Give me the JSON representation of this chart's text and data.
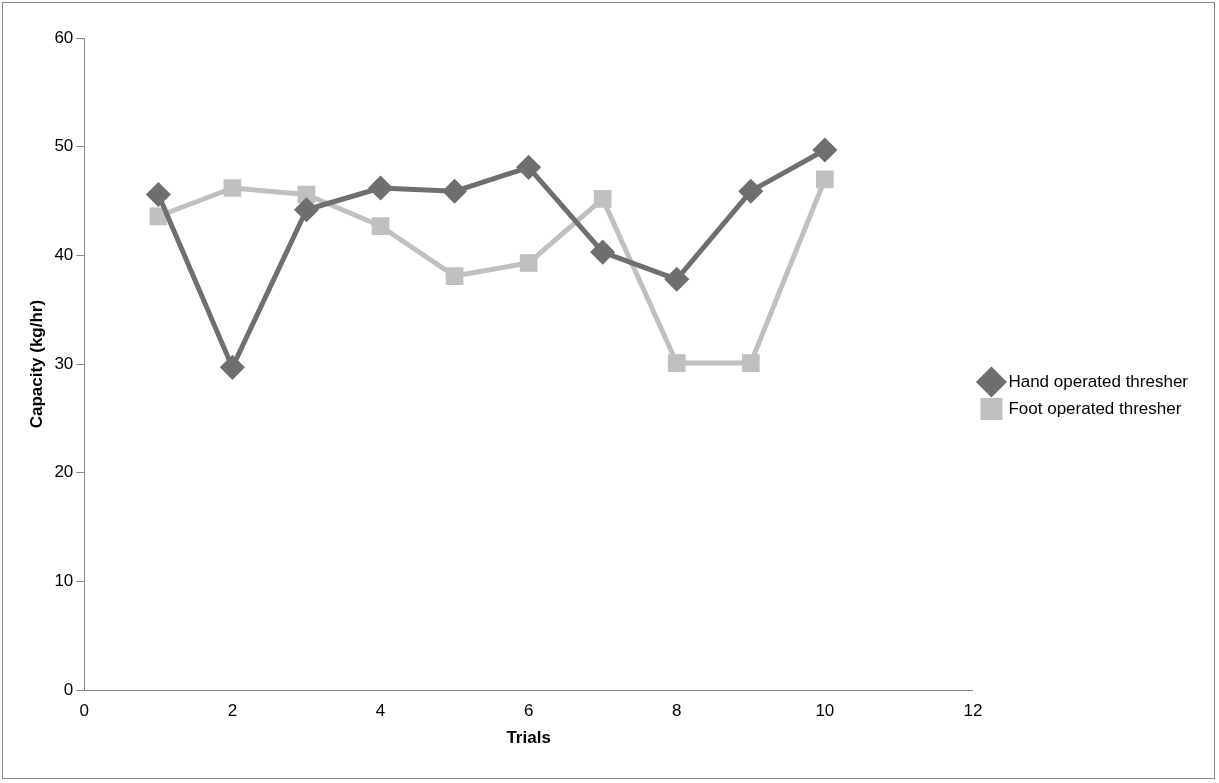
{
  "chart_data": {
    "type": "line",
    "xlabel": "Trials",
    "ylabel": "Capacity (kg/hr)",
    "x": [
      1,
      2,
      3,
      4,
      5,
      6,
      7,
      8,
      9,
      10
    ],
    "series": [
      {
        "name": "Hand operated thresher",
        "color": "#6f6f6f",
        "marker": "diamond",
        "values": [
          45.6,
          29.7,
          44.2,
          46.2,
          45.9,
          48.1,
          40.3,
          37.8,
          45.9,
          49.7
        ]
      },
      {
        "name": "Foot operated thresher",
        "color": "#c0c0c0",
        "marker": "square",
        "values": [
          43.6,
          46.2,
          45.6,
          42.7,
          38.1,
          39.3,
          45.2,
          30.1,
          30.1,
          47.0
        ]
      }
    ],
    "xlim": [
      0,
      12
    ],
    "xticks": [
      0,
      2,
      4,
      6,
      8,
      10,
      12
    ],
    "ylim": [
      0,
      60
    ],
    "yticks": [
      0,
      10,
      20,
      30,
      40,
      50,
      60
    ],
    "grid": false,
    "legend": "right",
    "line_style": "solid"
  }
}
